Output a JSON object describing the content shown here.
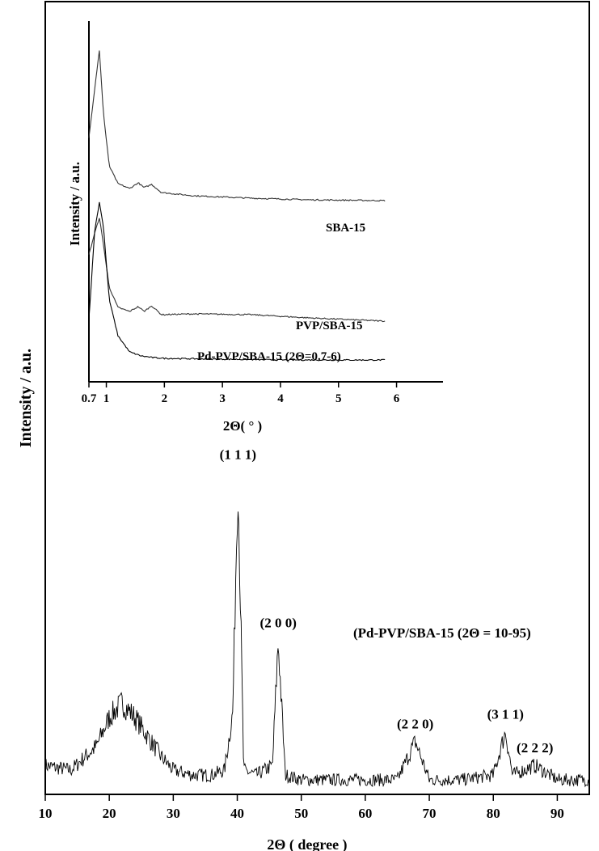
{
  "chart_data": [
    {
      "type": "line",
      "role": "main",
      "xlabel": "2Θ ( degree )",
      "ylabel": "Intensity / a.u.",
      "xlim": [
        10,
        95
      ],
      "xticks": [
        10,
        20,
        30,
        40,
        50,
        60,
        70,
        80,
        90
      ],
      "series_label": "(Pd-PVP/SBA-15 (2Θ = 10-95)",
      "series": [
        {
          "x": [
            10,
            14,
            18,
            20,
            22,
            24,
            26,
            28,
            30,
            33,
            36,
            38,
            39.3,
            40.1,
            41,
            43,
            45.5,
            46.4,
            47.5,
            50,
            55,
            60,
            65,
            67.8,
            70,
            75,
            80,
            81.9,
            83,
            86.5,
            90,
            95
          ],
          "values": [
            4,
            3,
            8,
            14,
            17,
            14,
            10,
            6,
            3,
            2,
            2,
            3,
            15,
            65,
            3,
            2,
            4,
            30,
            2,
            1,
            1,
            1,
            1,
            9,
            1,
            1,
            2,
            11,
            2,
            4,
            1,
            1
          ]
        }
      ],
      "annotations": [
        {
          "label": "(1 1 1)",
          "x": 40.1
        },
        {
          "label": "(2 0 0)",
          "x": 46.4
        },
        {
          "label": "(2 2 0)",
          "x": 67.8
        },
        {
          "label": "(3 1 1)",
          "x": 81.9
        },
        {
          "label": "(2 2 2)",
          "x": 86.5
        }
      ]
    },
    {
      "type": "line",
      "role": "inset",
      "xlabel": "2Θ( ° )",
      "ylabel": "Intensity / a.u.",
      "xlim": [
        0.7,
        6.8
      ],
      "xtick_labels": [
        "0.7",
        "1",
        "2",
        "3",
        "4",
        "5",
        "6"
      ],
      "xticks": [
        0.7,
        1,
        2,
        3,
        4,
        5,
        6
      ],
      "series": [
        {
          "name": "SBA-15",
          "x": [
            0.7,
            0.8,
            0.88,
            0.95,
            1.05,
            1.2,
            1.4,
            1.55,
            1.65,
            1.78,
            1.95,
            2.5,
            3.5,
            4.5,
            5.8
          ],
          "values": [
            130,
            190,
            238,
            160,
            95,
            73,
            67,
            74,
            68,
            72,
            62,
            58,
            55,
            53,
            52
          ]
        },
        {
          "name": "PVP/SBA-15",
          "x": [
            0.7,
            0.8,
            0.88,
            0.95,
            1.05,
            1.2,
            1.4,
            1.55,
            1.65,
            1.78,
            1.95,
            2.5,
            3.5,
            4.5,
            5.8
          ],
          "values": [
            95,
            122,
            141,
            108,
            55,
            30,
            25,
            31,
            25,
            32,
            21,
            22,
            21,
            17,
            13
          ]
        },
        {
          "name": "Pd-PVP/SBA-15 (2Θ=0.7-6)",
          "x": [
            0.7,
            0.8,
            0.88,
            0.95,
            1.05,
            1.2,
            1.4,
            1.6,
            1.8,
            2.0,
            3.0,
            4.0,
            5.0,
            5.8
          ],
          "values": [
            55,
            165,
            200,
            170,
            80,
            35,
            15,
            10,
            8,
            7,
            6,
            5,
            5,
            5
          ]
        }
      ]
    }
  ]
}
